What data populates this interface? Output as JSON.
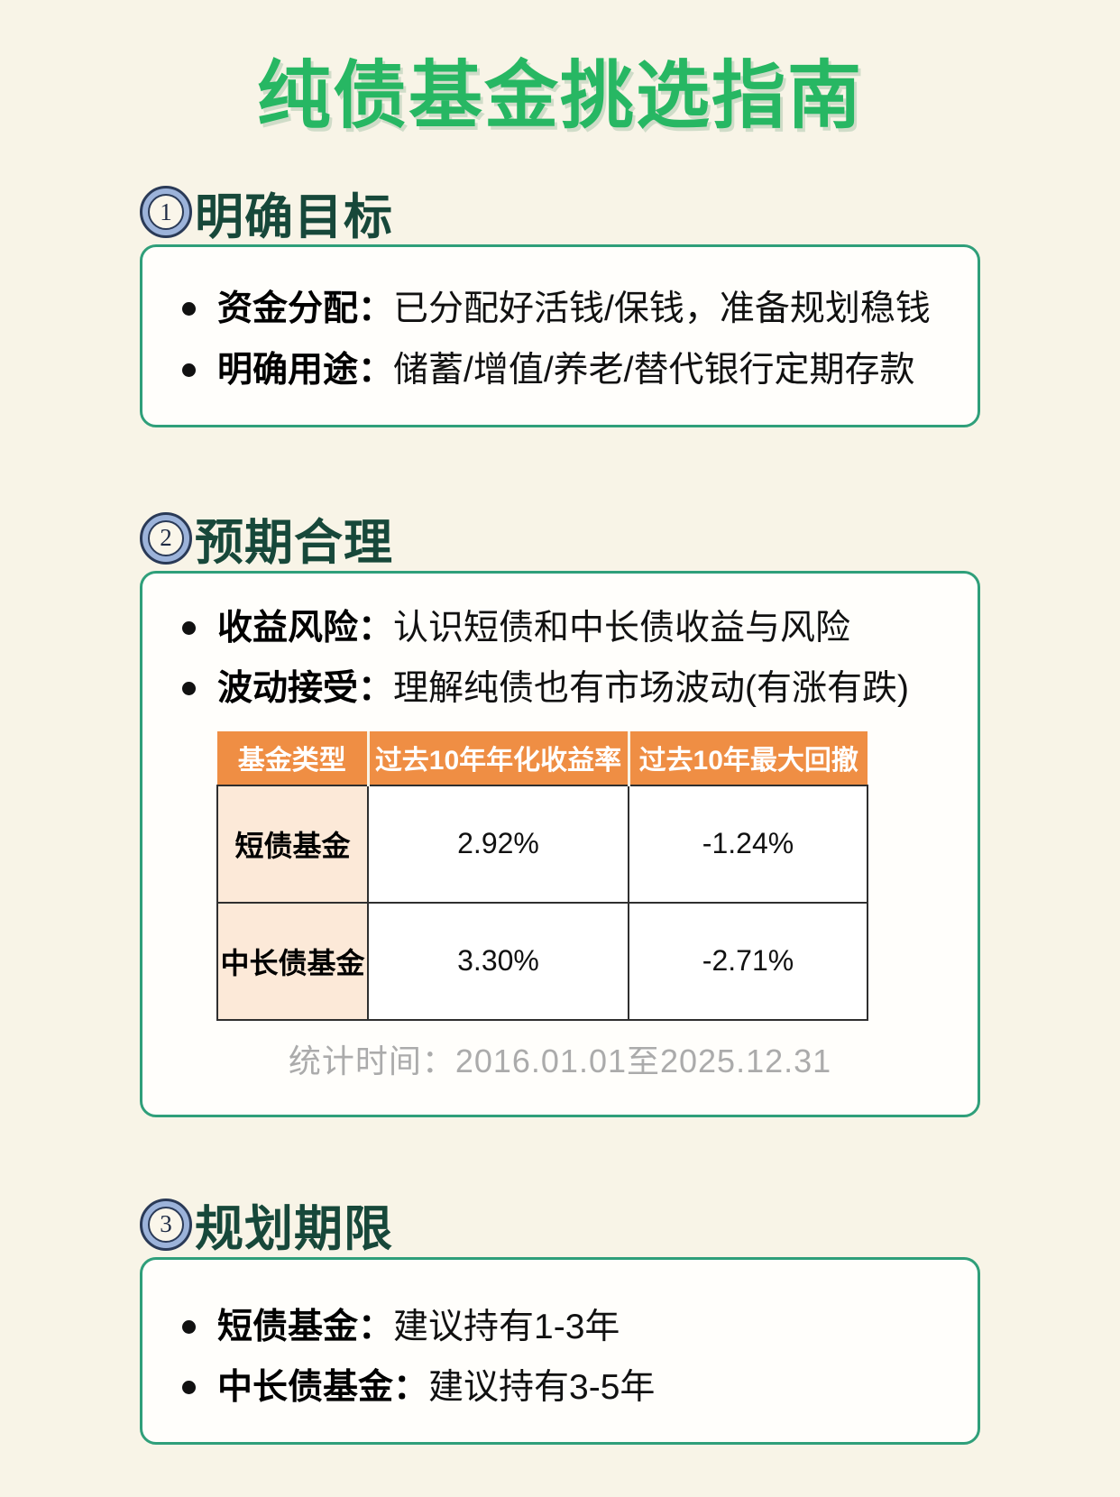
{
  "page": {
    "title": "纯债基金挑选指南"
  },
  "colors": {
    "background": "#f8f4e7",
    "title_green": "#27b763",
    "heading_green": "#17483a",
    "card_border_green": "#2f9f7a",
    "badge_ring_blue": "#9cb3da",
    "table_header_orange": "#ef8e44",
    "table_rowhead_peach": "#fce9d8",
    "footnote_gray": "#ababab"
  },
  "sections": [
    {
      "number": "1",
      "heading": "明确目标",
      "bullets": [
        {
          "label": "资金分配：",
          "text": "已分配好活钱/保钱，准备规划稳钱"
        },
        {
          "label": "明确用途：",
          "text": "储蓄/增值/养老/替代银行定期存款"
        }
      ]
    },
    {
      "number": "2",
      "heading": "预期合理",
      "bullets": [
        {
          "label": "收益风险：",
          "text": "认识短债和中长债收益与风险"
        },
        {
          "label": "波动接受：",
          "text": "理解纯债也有市场波动(有涨有跌)"
        }
      ],
      "table": {
        "headers": [
          "基金类型",
          "过去10年年化收益率",
          "过去10年最大回撤"
        ],
        "rows": [
          [
            "短债基金",
            "2.92%",
            "-1.24%"
          ],
          [
            "中长债基金",
            "3.30%",
            "-2.71%"
          ]
        ]
      },
      "footnote": "统计时间：2016.01.01至2025.12.31"
    },
    {
      "number": "3",
      "heading": "规划期限",
      "bullets": [
        {
          "label": "短债基金：",
          "text": "建议持有1-3年"
        },
        {
          "label": "中长债基金：",
          "text": "建议持有3-5年"
        }
      ]
    }
  ]
}
